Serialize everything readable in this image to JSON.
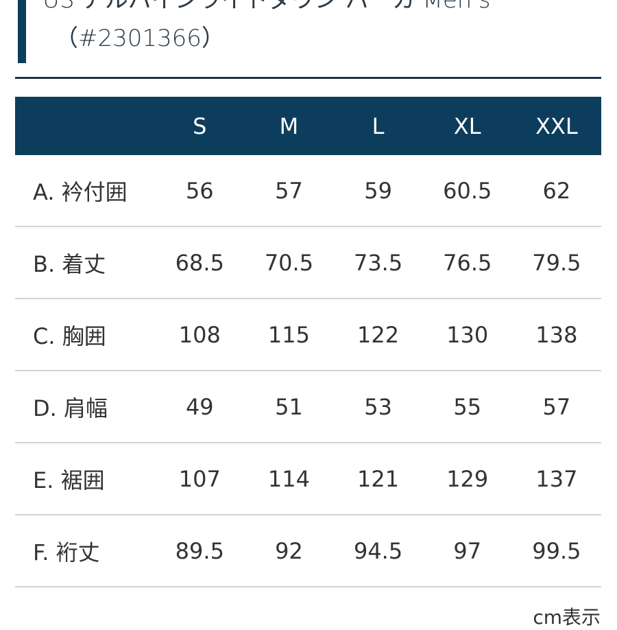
{
  "title": {
    "line1": "US アルパインライトダウン パーカ Men's",
    "line2": "（#2301366）"
  },
  "table": {
    "headers": [
      "",
      "S",
      "M",
      "L",
      "XL",
      "XXL"
    ],
    "rows": [
      {
        "label": "A. 衿付囲",
        "values": [
          "56",
          "57",
          "59",
          "60.5",
          "62"
        ]
      },
      {
        "label": "B. 着丈",
        "values": [
          "68.5",
          "70.5",
          "73.5",
          "76.5",
          "79.5"
        ]
      },
      {
        "label": "C. 胸囲",
        "values": [
          "108",
          "115",
          "122",
          "130",
          "138"
        ]
      },
      {
        "label": "D. 肩幅",
        "values": [
          "49",
          "51",
          "53",
          "55",
          "57"
        ]
      },
      {
        "label": "E. 裾囲",
        "values": [
          "107",
          "114",
          "121",
          "129",
          "137"
        ]
      },
      {
        "label": "F. 裄丈",
        "values": [
          "89.5",
          "92",
          "94.5",
          "97",
          "99.5"
        ]
      }
    ]
  },
  "footer": {
    "unit_note": "cm表示"
  },
  "colors": {
    "header_bg": "#0d3d5c"
  }
}
